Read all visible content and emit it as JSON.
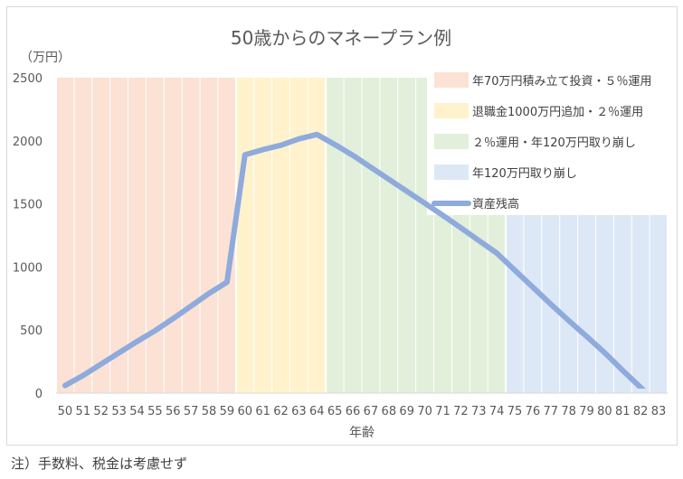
{
  "chart_data": {
    "type": "line",
    "title": "50歳からのマネープラン例",
    "ylabel": "（万円）",
    "xlabel": "年齢",
    "ylim": [
      0,
      2500
    ],
    "yticks": [
      0,
      500,
      1000,
      1500,
      2000,
      2500
    ],
    "x": [
      50,
      51,
      52,
      53,
      54,
      55,
      56,
      57,
      58,
      59,
      60,
      61,
      62,
      63,
      64,
      65,
      66,
      67,
      68,
      69,
      70,
      71,
      72,
      73,
      74,
      75,
      76,
      77,
      78,
      79,
      80,
      81,
      82,
      83
    ],
    "series": [
      {
        "name": "資産残高",
        "color": "#8faadc",
        "values": [
          60,
          140,
          230,
          320,
          410,
          495,
          590,
          690,
          790,
          880,
          1890,
          1930,
          1965,
          2015,
          2050,
          1970,
          1885,
          1790,
          1695,
          1600,
          1505,
          1410,
          1310,
          1210,
          1110,
          975,
          840,
          705,
          575,
          450,
          320,
          180,
          45,
          -90
        ]
      }
    ],
    "bands": [
      {
        "name": "年70万円積み立て投資・５％運用",
        "from": 50,
        "to": 59,
        "color": "#fbe2d5"
      },
      {
        "name": "退職金1000万円追加・２％運用",
        "from": 60,
        "to": 64,
        "color": "#fff2cc"
      },
      {
        "name": "２％運用・年120万円取り崩し",
        "from": 65,
        "to": 74,
        "color": "#e2efda"
      },
      {
        "name": "年120万円取り崩し",
        "from": 75,
        "to": 83,
        "color": "#dde8f6"
      }
    ],
    "legend_position": "top-right",
    "grid": true
  },
  "footnote": "注）手数料、税金は考慮せず"
}
